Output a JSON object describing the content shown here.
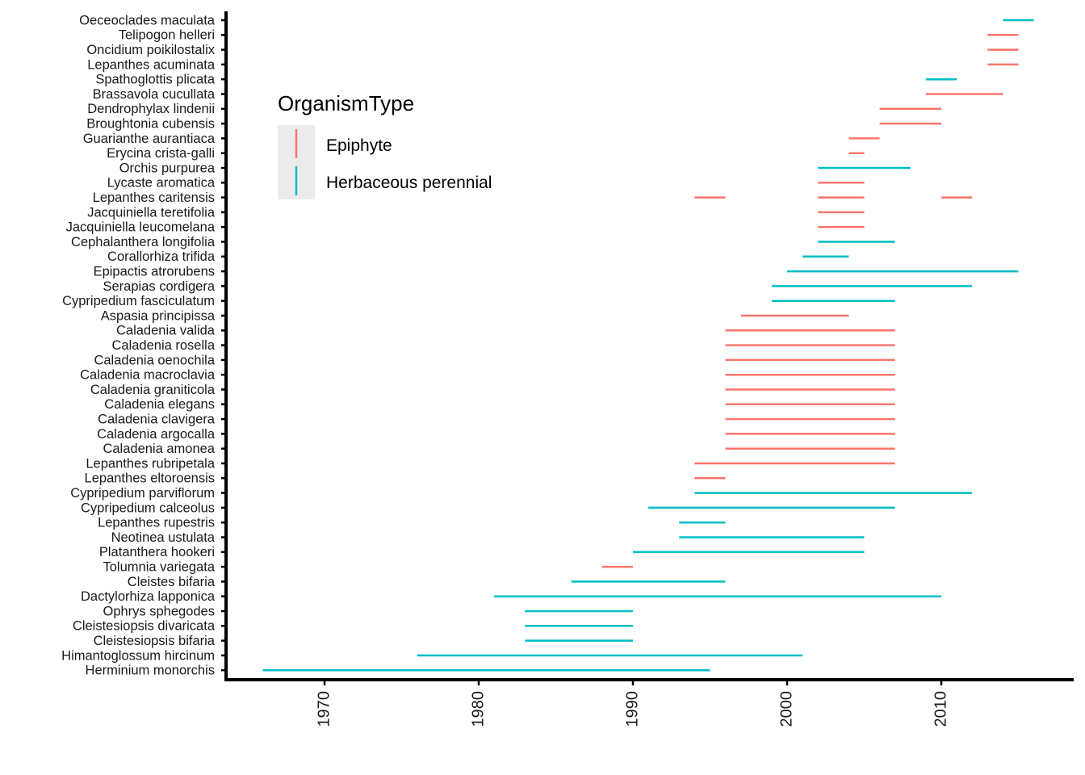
{
  "chart_data": {
    "type": "range-segments",
    "xlabel": "",
    "ylabel": "",
    "xlim": [
      1964,
      2018
    ],
    "x_ticks": [
      1970,
      1980,
      1990,
      2000,
      2010
    ],
    "legend": {
      "title": "OrganismType",
      "placement": "top-left",
      "entries": [
        {
          "name": "Epiphyte",
          "color": "#F8766D"
        },
        {
          "name": "Herbaceous perennial",
          "color": "#00BFC4"
        }
      ]
    },
    "categories": [
      "Herminium monorchis",
      "Himantoglossum hircinum",
      "Cleistesiopsis bifaria",
      "Cleistesiopsis divaricata",
      "Ophrys sphegodes",
      "Dactylorhiza lapponica",
      "Cleistes bifaria",
      "Tolumnia variegata",
      "Platanthera hookeri",
      "Neotinea ustulata",
      "Lepanthes rupestris",
      "Cypripedium calceolus",
      "Cypripedium parviflorum",
      "Lepanthes eltoroensis",
      "Lepanthes rubripetala",
      "Caladenia amonea",
      "Caladenia argocalla",
      "Caladenia clavigera",
      "Caladenia elegans",
      "Caladenia graniticola",
      "Caladenia macroclavia",
      "Caladenia oenochila",
      "Caladenia rosella",
      "Caladenia valida",
      "Aspasia principissa",
      "Cypripedium fasciculatum",
      "Serapias cordigera",
      "Epipactis atrorubens",
      "Corallorhiza trifida",
      "Cephalanthera longifolia",
      "Jacquiniella leucomelana",
      "Jacquiniella teretifolia",
      "Lepanthes caritensis",
      "Lycaste aromatica",
      "Orchis purpurea",
      "Erycina crista-galli",
      "Guarianthe aurantiaca",
      "Broughtonia cubensis",
      "Dendrophylax lindenii",
      "Brassavola cucullata",
      "Spathoglottis plicata",
      "Lepanthes acuminata",
      "Oncidium poikilostalix",
      "Telipogon helleri",
      "Oeceoclades maculata"
    ],
    "segments": [
      {
        "species": "Herminium monorchis",
        "type": "Herbaceous perennial",
        "start": 1966,
        "end": 1995
      },
      {
        "species": "Himantoglossum hircinum",
        "type": "Herbaceous perennial",
        "start": 1976,
        "end": 2001
      },
      {
        "species": "Cleistesiopsis bifaria",
        "type": "Herbaceous perennial",
        "start": 1983,
        "end": 1990
      },
      {
        "species": "Cleistesiopsis divaricata",
        "type": "Herbaceous perennial",
        "start": 1983,
        "end": 1990
      },
      {
        "species": "Ophrys sphegodes",
        "type": "Herbaceous perennial",
        "start": 1983,
        "end": 1990
      },
      {
        "species": "Dactylorhiza lapponica",
        "type": "Herbaceous perennial",
        "start": 1981,
        "end": 2010
      },
      {
        "species": "Cleistes bifaria",
        "type": "Herbaceous perennial",
        "start": 1986,
        "end": 1996
      },
      {
        "species": "Tolumnia variegata",
        "type": "Epiphyte",
        "start": 1988,
        "end": 1990
      },
      {
        "species": "Platanthera hookeri",
        "type": "Herbaceous perennial",
        "start": 1990,
        "end": 2005
      },
      {
        "species": "Neotinea ustulata",
        "type": "Herbaceous perennial",
        "start": 1993,
        "end": 2005
      },
      {
        "species": "Lepanthes rupestris",
        "type": "Herbaceous perennial",
        "start": 1993,
        "end": 1996
      },
      {
        "species": "Cypripedium calceolus",
        "type": "Herbaceous perennial",
        "start": 1991,
        "end": 2007
      },
      {
        "species": "Cypripedium parviflorum",
        "type": "Herbaceous perennial",
        "start": 1994,
        "end": 2012
      },
      {
        "species": "Lepanthes eltoroensis",
        "type": "Epiphyte",
        "start": 1994,
        "end": 1996
      },
      {
        "species": "Lepanthes rubripetala",
        "type": "Epiphyte",
        "start": 1994,
        "end": 2007
      },
      {
        "species": "Caladenia amonea",
        "type": "Epiphyte",
        "start": 1996,
        "end": 2007
      },
      {
        "species": "Caladenia argocalla",
        "type": "Epiphyte",
        "start": 1996,
        "end": 2007
      },
      {
        "species": "Caladenia clavigera",
        "type": "Epiphyte",
        "start": 1996,
        "end": 2007
      },
      {
        "species": "Caladenia elegans",
        "type": "Epiphyte",
        "start": 1996,
        "end": 2007
      },
      {
        "species": "Caladenia graniticola",
        "type": "Epiphyte",
        "start": 1996,
        "end": 2007
      },
      {
        "species": "Caladenia macroclavia",
        "type": "Epiphyte",
        "start": 1996,
        "end": 2007
      },
      {
        "species": "Caladenia oenochila",
        "type": "Epiphyte",
        "start": 1996,
        "end": 2007
      },
      {
        "species": "Caladenia rosella",
        "type": "Epiphyte",
        "start": 1996,
        "end": 2007
      },
      {
        "species": "Caladenia valida",
        "type": "Epiphyte",
        "start": 1996,
        "end": 2007
      },
      {
        "species": "Aspasia principissa",
        "type": "Epiphyte",
        "start": 1997,
        "end": 2004
      },
      {
        "species": "Cypripedium fasciculatum",
        "type": "Herbaceous perennial",
        "start": 1999,
        "end": 2007
      },
      {
        "species": "Serapias cordigera",
        "type": "Herbaceous perennial",
        "start": 1999,
        "end": 2012
      },
      {
        "species": "Epipactis atrorubens",
        "type": "Herbaceous perennial",
        "start": 2000,
        "end": 2015
      },
      {
        "species": "Corallorhiza trifida",
        "type": "Herbaceous perennial",
        "start": 2001,
        "end": 2004
      },
      {
        "species": "Cephalanthera longifolia",
        "type": "Herbaceous perennial",
        "start": 2002,
        "end": 2007
      },
      {
        "species": "Jacquiniella leucomelana",
        "type": "Epiphyte",
        "start": 2002,
        "end": 2005
      },
      {
        "species": "Jacquiniella teretifolia",
        "type": "Epiphyte",
        "start": 2002,
        "end": 2005
      },
      {
        "species": "Lepanthes caritensis",
        "type": "Epiphyte",
        "start": 1994,
        "end": 1996
      },
      {
        "species": "Lepanthes caritensis",
        "type": "Epiphyte",
        "start": 2002,
        "end": 2005
      },
      {
        "species": "Lepanthes caritensis",
        "type": "Epiphyte",
        "start": 2010,
        "end": 2012
      },
      {
        "species": "Lycaste aromatica",
        "type": "Epiphyte",
        "start": 2002,
        "end": 2005
      },
      {
        "species": "Orchis purpurea",
        "type": "Herbaceous perennial",
        "start": 2002,
        "end": 2008
      },
      {
        "species": "Erycina crista-galli",
        "type": "Epiphyte",
        "start": 2004,
        "end": 2005
      },
      {
        "species": "Guarianthe aurantiaca",
        "type": "Epiphyte",
        "start": 2004,
        "end": 2006
      },
      {
        "species": "Broughtonia cubensis",
        "type": "Epiphyte",
        "start": 2006,
        "end": 2010
      },
      {
        "species": "Dendrophylax lindenii",
        "type": "Epiphyte",
        "start": 2006,
        "end": 2010
      },
      {
        "species": "Brassavola cucullata",
        "type": "Epiphyte",
        "start": 2009,
        "end": 2014
      },
      {
        "species": "Spathoglottis plicata",
        "type": "Herbaceous perennial",
        "start": 2009,
        "end": 2011
      },
      {
        "species": "Lepanthes acuminata",
        "type": "Epiphyte",
        "start": 2013,
        "end": 2015
      },
      {
        "species": "Oncidium poikilostalix",
        "type": "Epiphyte",
        "start": 2013,
        "end": 2015
      },
      {
        "species": "Telipogon helleri",
        "type": "Epiphyte",
        "start": 2013,
        "end": 2015
      },
      {
        "species": "Oeceoclades maculata",
        "type": "Herbaceous perennial",
        "start": 2014,
        "end": 2016
      }
    ]
  }
}
